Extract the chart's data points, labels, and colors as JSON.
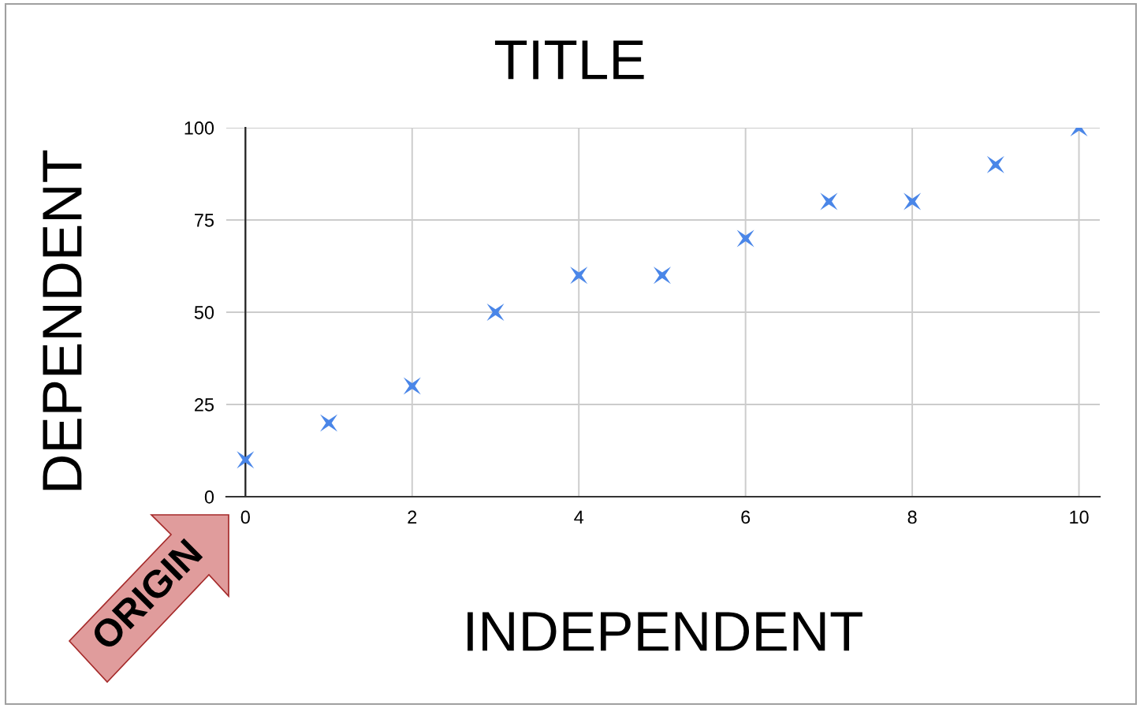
{
  "chart_data": {
    "type": "scatter",
    "title": "TITLE",
    "xlabel": "INDEPENDENT",
    "ylabel": "DEPENDENT",
    "x": [
      0,
      1,
      2,
      3,
      4,
      5,
      6,
      7,
      8,
      9,
      10
    ],
    "series": [
      {
        "color": "#4a86e8",
        "values": [
          10,
          20,
          30,
          50,
          60,
          60,
          70,
          80,
          80,
          90,
          100
        ]
      }
    ],
    "xlim": [
      -0.23,
      10.25
    ],
    "xticks": [
      0,
      2,
      4,
      6,
      8,
      10
    ],
    "ylim": [
      0,
      100
    ],
    "yticks": [
      0,
      25,
      50,
      75,
      100
    ],
    "grid": true,
    "marker": "star",
    "annotations": [
      "ORIGIN"
    ]
  }
}
